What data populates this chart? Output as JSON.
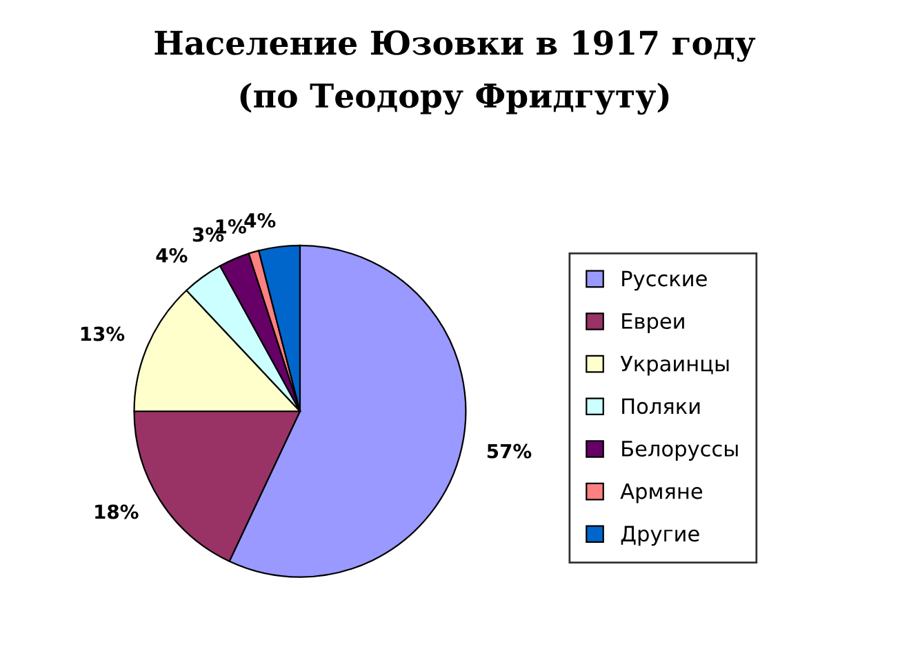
{
  "chart_data": {
    "type": "pie",
    "title": "Население Юзовки в 1917 году",
    "subtitle": "(по Теодору Фридгуту)",
    "categories": [
      "Русские",
      "Евреи",
      "Украинцы",
      "Поляки",
      "Белоруссы",
      "Армяне",
      "Другие"
    ],
    "values": [
      57,
      18,
      13,
      4,
      3,
      1,
      4
    ],
    "colors": [
      "#9999ff",
      "#993366",
      "#ffffcc",
      "#ccffff",
      "#660066",
      "#ff8080",
      "#0066cc"
    ],
    "value_labels": [
      "57%",
      "18%",
      "13%",
      "4%",
      "3%",
      "1%",
      "4%"
    ],
    "legend": "right"
  }
}
